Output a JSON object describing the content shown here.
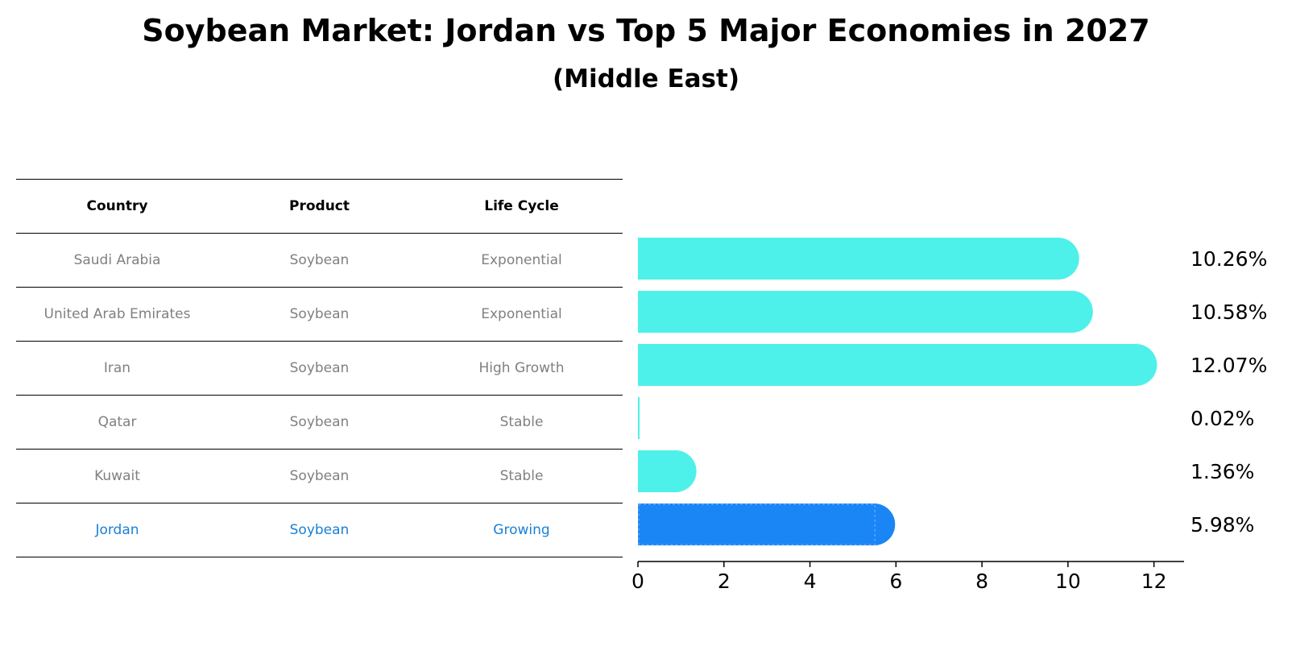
{
  "chart_data": {
    "type": "bar",
    "orientation": "horizontal",
    "title": "Soybean Market: Jordan vs Top 5 Major Economies in 2027",
    "subtitle": "(Middle East)",
    "categories": [
      "Saudi Arabia",
      "United Arab Emirates",
      "Iran",
      "Qatar",
      "Kuwait",
      "Jordan"
    ],
    "values": [
      10.26,
      10.58,
      12.07,
      0.02,
      1.36,
      5.98
    ],
    "value_labels": [
      "10.26%",
      "10.58%",
      "12.07%",
      "0.02%",
      "1.36%",
      "5.98%"
    ],
    "highlight": "Jordan",
    "xlim": [
      0,
      12.7
    ],
    "xticks": [
      0,
      2,
      4,
      6,
      8,
      10,
      12
    ],
    "xtick_labels": [
      "0",
      "2",
      "4",
      "6",
      "8",
      "10",
      "12"
    ],
    "colors": {
      "bar": "#4ef0ea",
      "highlight_bar": "#1a85f5",
      "muted_text": "#808080",
      "highlight_text": "#1a80d6"
    }
  },
  "table": {
    "headers": [
      "Country",
      "Product",
      "Life Cycle"
    ],
    "rows": [
      [
        "Saudi Arabia",
        "Soybean",
        "Exponential"
      ],
      [
        "United Arab Emirates",
        "Soybean",
        "Exponential"
      ],
      [
        "Iran",
        "Soybean",
        "High Growth"
      ],
      [
        "Qatar",
        "Soybean",
        "Stable"
      ],
      [
        "Kuwait",
        "Soybean",
        "Stable"
      ],
      [
        "Jordan",
        "Soybean",
        "Growing"
      ]
    ]
  }
}
